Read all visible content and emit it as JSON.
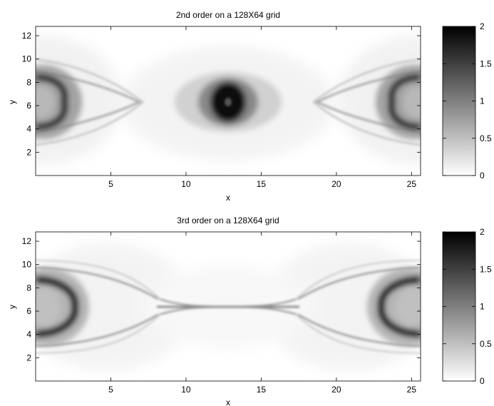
{
  "chart_data": [
    {
      "type": "heatmap",
      "title": "2nd order on a 128X64 grid",
      "xlabel": "x",
      "ylabel": "y",
      "xlim": [
        0,
        25.6
      ],
      "ylim": [
        0,
        12.8
      ],
      "xticks": [
        5,
        10,
        15,
        20,
        25
      ],
      "yticks": [
        2,
        4,
        6,
        8,
        10,
        12
      ],
      "colorbar": {
        "range": [
          0,
          2
        ],
        "ticks": [
          0,
          0.5,
          1,
          1.5,
          2
        ],
        "colormap": "gray-reversed"
      },
      "colormap_colors": {
        "low": "#ffffff",
        "high": "#000000"
      },
      "grid": false
    },
    {
      "type": "heatmap",
      "title": "3rd order on a 128X64 grid",
      "xlabel": "x",
      "ylabel": "y",
      "xlim": [
        0,
        25.6
      ],
      "ylim": [
        0,
        12.8
      ],
      "xticks": [
        5,
        10,
        15,
        20,
        25
      ],
      "yticks": [
        2,
        4,
        6,
        8,
        10,
        12
      ],
      "colorbar": {
        "range": [
          0,
          2
        ],
        "ticks": [
          0,
          0.5,
          1,
          1.5,
          2
        ],
        "colormap": "gray-reversed"
      },
      "colormap_colors": {
        "low": "#ffffff",
        "high": "#000000"
      },
      "grid": false
    }
  ]
}
